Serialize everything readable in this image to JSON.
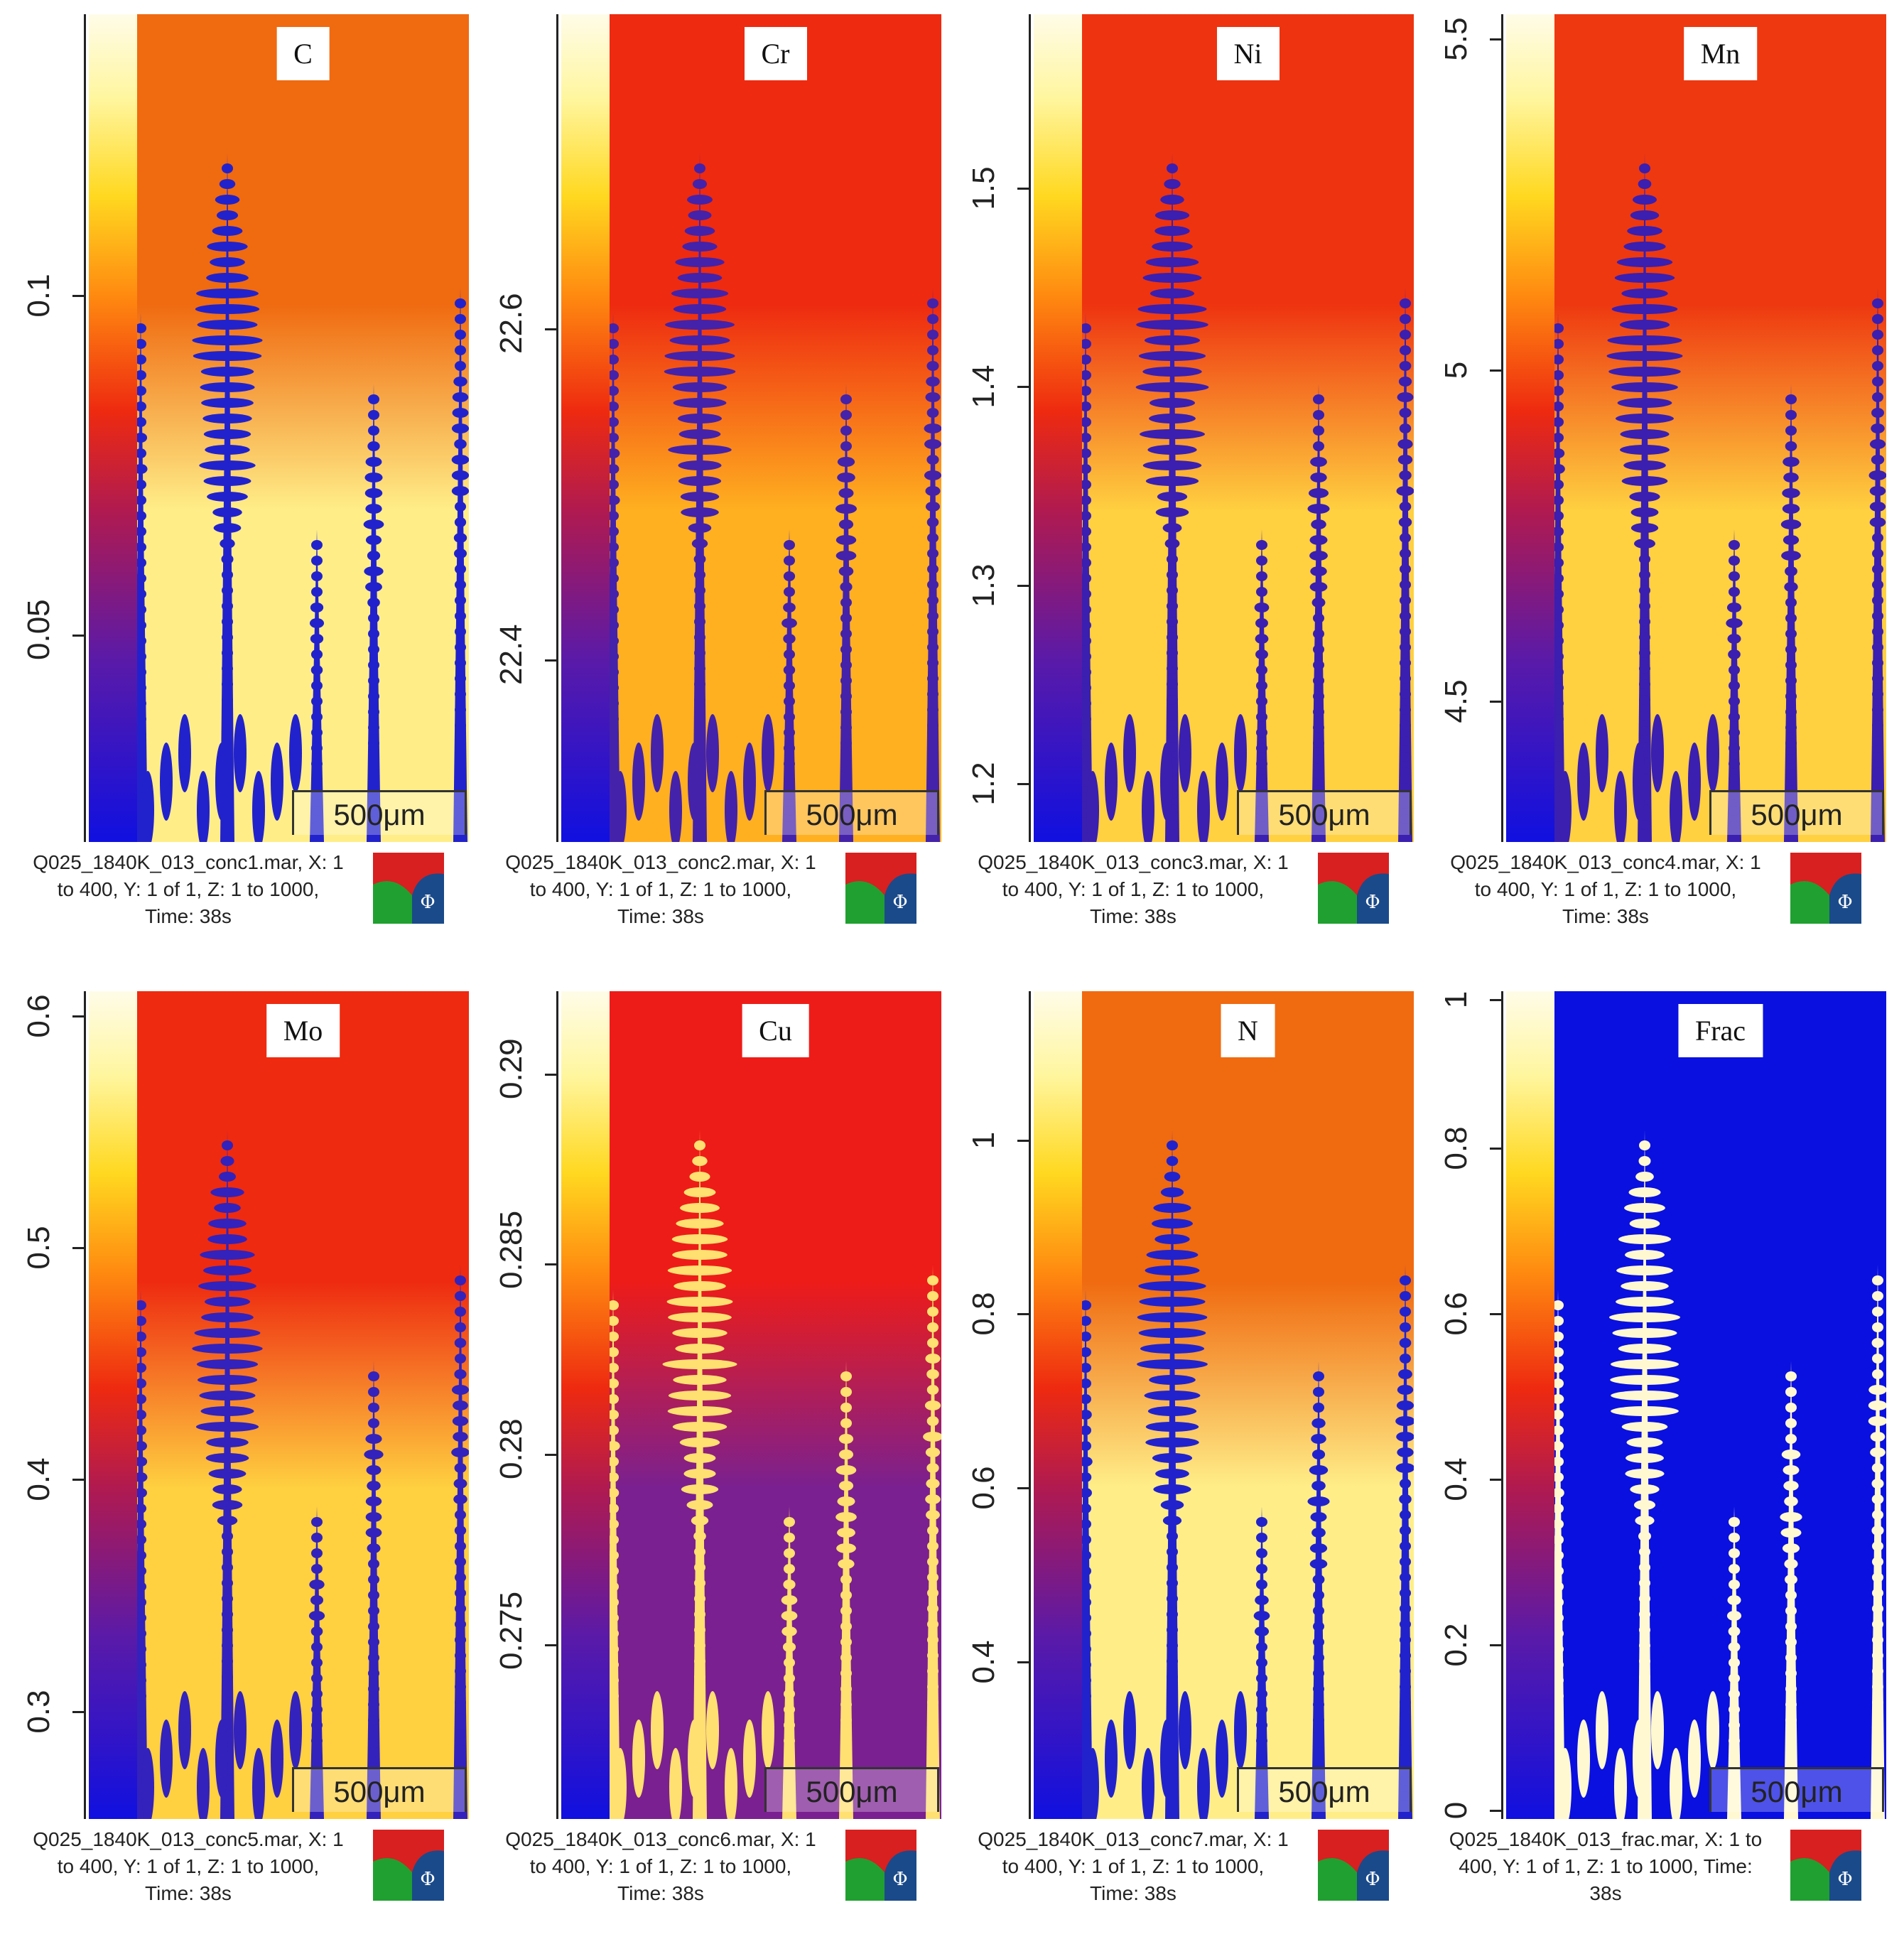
{
  "scalebar_label": "500μm",
  "panels": [
    {
      "element": "C",
      "caption": [
        "Q025_1840K_013_conc1.mar, X: 1",
        "to 400, Y: 1 of 1, Z: 1 to 1000,",
        "Time: 38s"
      ],
      "ticks": [
        {
          "label": "0.05",
          "frac": 0.25
        },
        {
          "label": "0.1",
          "frac": 0.66
        }
      ],
      "bg": "#f06a10",
      "glow": "#ffee88",
      "dend": "#2222cc"
    },
    {
      "element": "Cr",
      "caption": [
        "Q025_1840K_013_conc2.mar, X: 1",
        "to 400, Y: 1 of 1, Z: 1 to 1000,",
        "Time: 38s"
      ],
      "ticks": [
        {
          "label": "22.4",
          "frac": 0.22
        },
        {
          "label": "22.6",
          "frac": 0.62
        }
      ],
      "bg": "#ee2a10",
      "glow": "#ffb020",
      "dend": "#4422aa"
    },
    {
      "element": "Ni",
      "caption": [
        "Q025_1840K_013_conc3.mar, X: 1",
        "to 400, Y: 1 of 1, Z: 1 to 1000,",
        "Time: 38s"
      ],
      "ticks": [
        {
          "label": "1.2",
          "frac": 0.07
        },
        {
          "label": "1.3",
          "frac": 0.31
        },
        {
          "label": "1.4",
          "frac": 0.55
        },
        {
          "label": "1.5",
          "frac": 0.79
        }
      ],
      "bg": "#ee3310",
      "glow": "#ffd040",
      "dend": "#3a1fb0"
    },
    {
      "element": "Mn",
      "caption": [
        "Q025_1840K_013_conc4.mar, X: 1",
        "to 400, Y: 1 of 1, Z: 1 to 1000,",
        "Time: 38s"
      ],
      "ticks": [
        {
          "label": "4.5",
          "frac": 0.17
        },
        {
          "label": "5",
          "frac": 0.57
        },
        {
          "label": "5.5",
          "frac": 0.97
        }
      ],
      "bg": "#ee3810",
      "glow": "#ffd040",
      "dend": "#3a1fb0"
    },
    {
      "element": "Mo",
      "caption": [
        "Q025_1840K_013_conc5.mar, X: 1",
        "to 400, Y: 1 of 1, Z: 1 to 1000,",
        "Time: 38s"
      ],
      "ticks": [
        {
          "label": "0.3",
          "frac": 0.13
        },
        {
          "label": "0.4",
          "frac": 0.41
        },
        {
          "label": "0.5",
          "frac": 0.69
        },
        {
          "label": "0.6",
          "frac": 0.97
        }
      ],
      "bg": "#ee2a10",
      "glow": "#ffd040",
      "dend": "#3322bb"
    },
    {
      "element": "Cu",
      "caption": [
        "Q025_1840K_013_conc6.mar, X: 1",
        "to 400, Y: 1 of 1, Z: 1 to 1000,",
        "Time: 38s"
      ],
      "ticks": [
        {
          "label": "0.275",
          "frac": 0.21
        },
        {
          "label": "0.28",
          "frac": 0.44
        },
        {
          "label": "0.285",
          "frac": 0.67
        },
        {
          "label": "0.29",
          "frac": 0.9
        }
      ],
      "bg": "#ee1c18",
      "glow": "#7a2090",
      "dend": "#ffe070"
    },
    {
      "element": "N",
      "caption": [
        "Q025_1840K_013_conc7.mar, X: 1",
        "to 400, Y: 1 of 1, Z: 1 to 1000,",
        "Time: 38s"
      ],
      "ticks": [
        {
          "label": "0.4",
          "frac": 0.19
        },
        {
          "label": "0.6",
          "frac": 0.4
        },
        {
          "label": "0.8",
          "frac": 0.61
        },
        {
          "label": "1",
          "frac": 0.82
        }
      ],
      "bg": "#f06a10",
      "glow": "#ffee88",
      "dend": "#2222cc"
    },
    {
      "element": "Frac",
      "caption": [
        "Q025_1840K_013_frac.mar, X: 1 to",
        "400, Y: 1 of 1, Z: 1 to 1000, Time:",
        "38s"
      ],
      "ticks": [
        {
          "label": "0",
          "frac": 0.01
        },
        {
          "label": "0.2",
          "frac": 0.21
        },
        {
          "label": "0.4",
          "frac": 0.41
        },
        {
          "label": "0.6",
          "frac": 0.61
        },
        {
          "label": "0.8",
          "frac": 0.81
        },
        {
          "label": "1",
          "frac": 0.99
        }
      ],
      "bg": "#0a10e0",
      "glow": "#0a10e0",
      "dend": "#fff8d0"
    }
  ]
}
